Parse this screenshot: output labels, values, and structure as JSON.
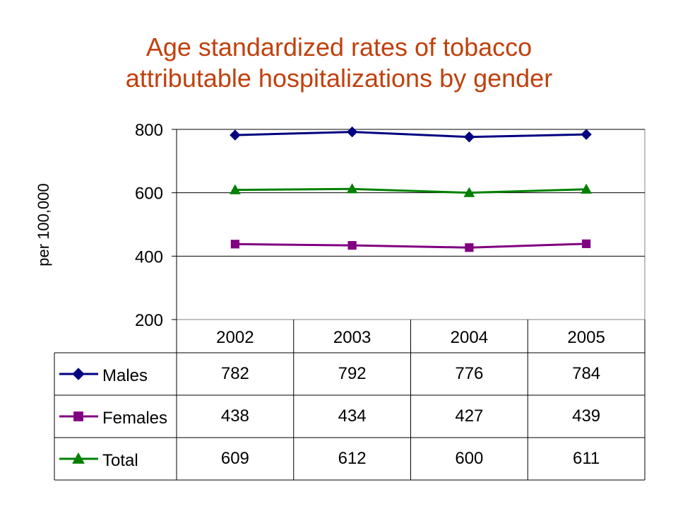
{
  "chart_data": {
    "type": "line",
    "title_lines": [
      "Age standardized rates of tobacco",
      "attributable hospitalizations by gender"
    ],
    "ylabel": "per 100,000",
    "xlabel": "",
    "categories": [
      "2002",
      "2003",
      "2004",
      "2005"
    ],
    "ylim": [
      200,
      800
    ],
    "yticks": [
      "200",
      "400",
      "600",
      "800"
    ],
    "grid": "horizontal",
    "legend": "data-table",
    "series": [
      {
        "name": "Males",
        "values": [
          782,
          792,
          776,
          784
        ],
        "labels": [
          "782",
          "792",
          "776",
          "784"
        ],
        "color": "#000080",
        "marker": "diamond"
      },
      {
        "name": "Females",
        "values": [
          438,
          434,
          427,
          439
        ],
        "labels": [
          "438",
          "434",
          "427",
          "439"
        ],
        "color": "#800080",
        "marker": "square"
      },
      {
        "name": "Total",
        "values": [
          609,
          612,
          600,
          611
        ],
        "labels": [
          "609",
          "612",
          "600",
          "611"
        ],
        "color": "#008000",
        "marker": "triangle"
      }
    ]
  }
}
